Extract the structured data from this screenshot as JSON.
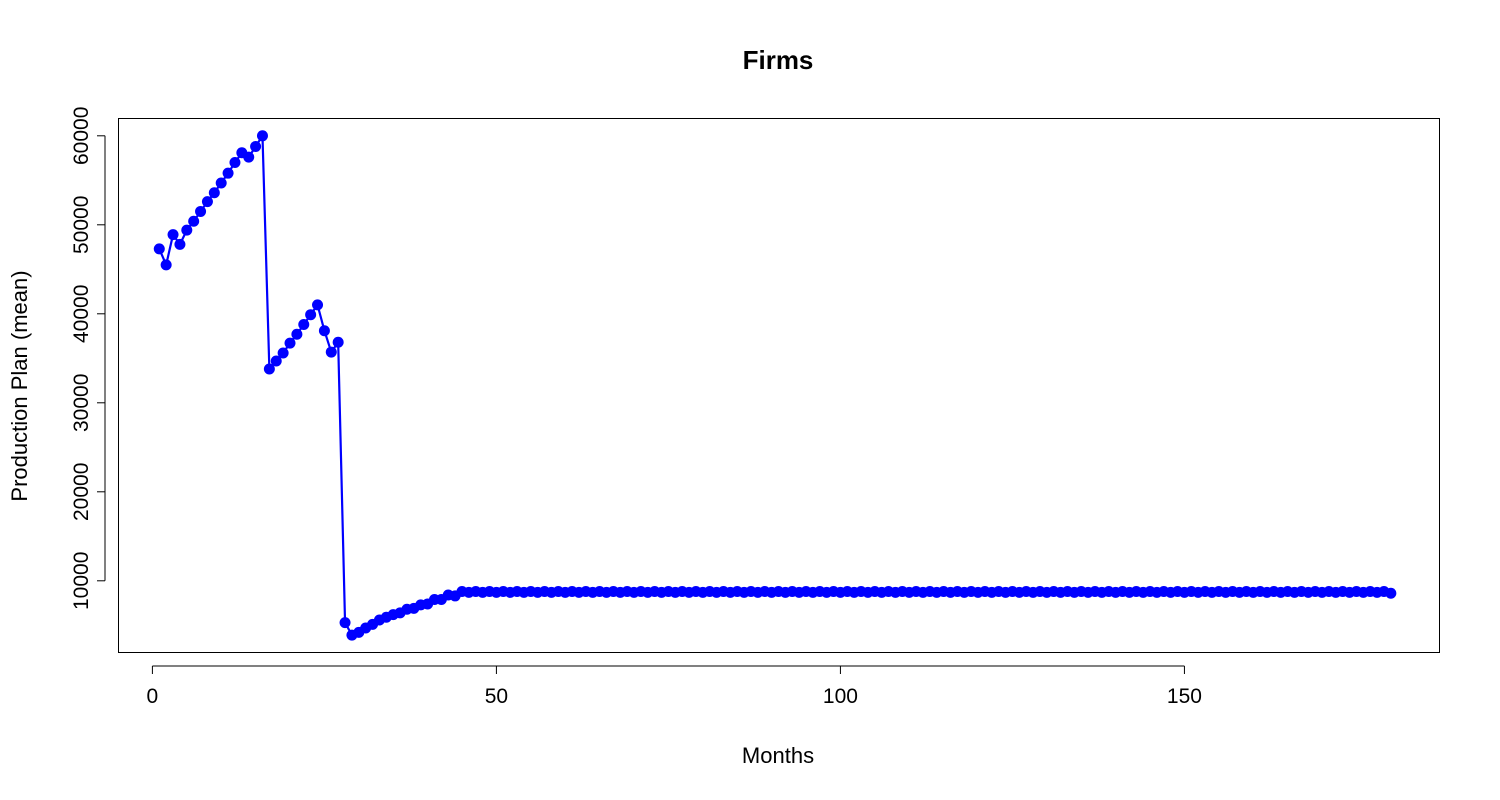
{
  "chart_data": {
    "type": "line",
    "title": "Firms",
    "xlabel": "Months",
    "ylabel": "Production Plan (mean)",
    "xlim": [
      -5,
      187
    ],
    "ylim": [
      2000,
      62000
    ],
    "x_ticks": [
      0,
      50,
      100,
      150
    ],
    "y_ticks": [
      10000,
      20000,
      30000,
      40000,
      50000,
      60000
    ],
    "grid": false,
    "legend": "none",
    "colors": {
      "series": "#0000ff",
      "axes": "#000000"
    },
    "series": [
      {
        "x": [
          1,
          2,
          3,
          4,
          5,
          6,
          7,
          8,
          9,
          10,
          11,
          12,
          13,
          14,
          15,
          16,
          17,
          18,
          19,
          20,
          21,
          22,
          23,
          24,
          25,
          26,
          27,
          28,
          29,
          30,
          31,
          32,
          33,
          34,
          35,
          36,
          37,
          38,
          39,
          40,
          41,
          42,
          43,
          44,
          45,
          46,
          47,
          48,
          49,
          50,
          51,
          52,
          53,
          54,
          55,
          56,
          57,
          58,
          59,
          60,
          61,
          62,
          63,
          64,
          65,
          66,
          67,
          68,
          69,
          70,
          71,
          72,
          73,
          74,
          75,
          76,
          77,
          78,
          79,
          80,
          81,
          82,
          83,
          84,
          85,
          86,
          87,
          88,
          89,
          90,
          91,
          92,
          93,
          94,
          95,
          96,
          97,
          98,
          99,
          100,
          101,
          102,
          103,
          104,
          105,
          106,
          107,
          108,
          109,
          110,
          111,
          112,
          113,
          114,
          115,
          116,
          117,
          118,
          119,
          120,
          121,
          122,
          123,
          124,
          125,
          126,
          127,
          128,
          129,
          130,
          131,
          132,
          133,
          134,
          135,
          136,
          137,
          138,
          139,
          140,
          141,
          142,
          143,
          144,
          145,
          146,
          147,
          148,
          149,
          150,
          151,
          152,
          153,
          154,
          155,
          156,
          157,
          158,
          159,
          160,
          161,
          162,
          163,
          164,
          165,
          166,
          167,
          168,
          169,
          170,
          171,
          172,
          173,
          174,
          175,
          176,
          177,
          178,
          179,
          180
        ],
        "y": [
          47300,
          45500,
          48900,
          47800,
          49400,
          50400,
          51500,
          52600,
          53600,
          54700,
          55800,
          57000,
          58100,
          57600,
          58800,
          60000,
          33800,
          34700,
          35600,
          36700,
          37700,
          38800,
          39900,
          41000,
          38100,
          35700,
          36800,
          5300,
          3900,
          4200,
          4700,
          5100,
          5600,
          5900,
          6200,
          6400,
          6800,
          6900,
          7300,
          7400,
          7900,
          7900,
          8400,
          8300,
          8800,
          8700,
          8800,
          8700,
          8800,
          8700,
          8800,
          8700,
          8800,
          8700,
          8800,
          8700,
          8800,
          8700,
          8800,
          8700,
          8800,
          8700,
          8800,
          8700,
          8800,
          8700,
          8800,
          8700,
          8800,
          8700,
          8800,
          8700,
          8800,
          8700,
          8800,
          8700,
          8800,
          8700,
          8800,
          8700,
          8800,
          8700,
          8800,
          8700,
          8800,
          8700,
          8800,
          8700,
          8800,
          8700,
          8800,
          8700,
          8800,
          8700,
          8800,
          8700,
          8800,
          8700,
          8800,
          8700,
          8800,
          8700,
          8800,
          8700,
          8800,
          8700,
          8800,
          8700,
          8800,
          8700,
          8800,
          8700,
          8800,
          8700,
          8800,
          8700,
          8800,
          8700,
          8800,
          8700,
          8800,
          8700,
          8800,
          8700,
          8800,
          8700,
          8800,
          8700,
          8800,
          8700,
          8800,
          8700,
          8800,
          8700,
          8800,
          8700,
          8800,
          8700,
          8800,
          8700,
          8800,
          8700,
          8800,
          8700,
          8800,
          8700,
          8800,
          8700,
          8800,
          8700,
          8800,
          8700,
          8800,
          8700,
          8800,
          8700,
          8800,
          8700,
          8800,
          8700,
          8800,
          8700,
          8800,
          8700,
          8800,
          8700,
          8800,
          8700,
          8800,
          8700,
          8800,
          8700,
          8800,
          8700,
          8800,
          8700,
          8800,
          8700,
          8800,
          8600
        ]
      }
    ]
  }
}
